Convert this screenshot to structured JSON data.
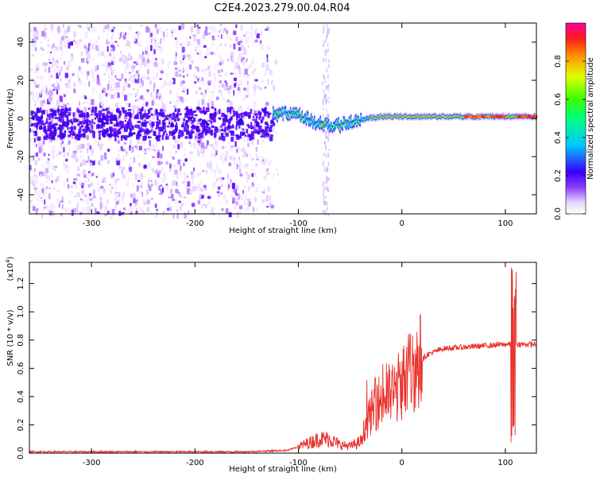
{
  "title": "C2E4.2023.279.00.04.R04",
  "chart_data": [
    {
      "type": "heatmap",
      "xlabel": "Height of straight line (km)",
      "ylabel": "Frequency (Hz)",
      "xlim": [
        -360,
        130
      ],
      "ylim": [
        -50,
        50
      ],
      "x_ticks": [
        -300,
        -200,
        -100,
        0,
        100
      ],
      "y_ticks": [
        -40,
        -20,
        0,
        20,
        40
      ],
      "x_tick_labels": [
        "-300",
        "-200",
        "-100",
        "0",
        "100"
      ],
      "y_tick_labels": [
        "-40",
        "-20",
        "0",
        "20",
        "40"
      ],
      "colorbar": {
        "label": "Normalized spectral amplitude",
        "range": [
          0,
          1
        ],
        "ticks": [
          0.0,
          0.2,
          0.4,
          0.6,
          0.8
        ],
        "tick_labels": [
          "0.0",
          "0.2",
          "0.4",
          "0.6",
          "0.8"
        ]
      },
      "features": {
        "noise_region_x": [
          -360,
          -125
        ],
        "signal_ridge": [
          {
            "x": -125,
            "f": 2
          },
          {
            "x": -110,
            "f": 3
          },
          {
            "x": -95,
            "f": 1
          },
          {
            "x": -85,
            "f": -2
          },
          {
            "x": -75,
            "f": -3
          },
          {
            "x": -65,
            "f": -4
          },
          {
            "x": -50,
            "f": -2
          },
          {
            "x": -35,
            "f": 0
          },
          {
            "x": -20,
            "f": 1
          },
          {
            "x": 0,
            "f": 1
          },
          {
            "x": 30,
            "f": 1
          },
          {
            "x": 60,
            "f": 1
          },
          {
            "x": 90,
            "f": 1
          },
          {
            "x": 130,
            "f": 1
          }
        ],
        "peak_segments_x": [
          [
            60,
            80
          ],
          [
            85,
            100
          ],
          [
            110,
            130
          ]
        ]
      }
    },
    {
      "type": "line",
      "xlabel": "Height of straight line (km)",
      "ylabel": "SNR (10 * v/v)",
      "y_multiplier": "(x10",
      "y_multiplier_exp": "4",
      "y_multiplier_close": ")",
      "xlim": [
        -360,
        130
      ],
      "ylim": [
        0,
        1.35
      ],
      "x_ticks": [
        -300,
        -200,
        -100,
        0,
        100
      ],
      "y_ticks": [
        0.0,
        0.2,
        0.4,
        0.6,
        0.8,
        1.0,
        1.2
      ],
      "x_tick_labels": [
        "-300",
        "-200",
        "-100",
        "0",
        "100"
      ],
      "y_tick_labels": [
        "0.0",
        "0.2",
        "0.4",
        "0.6",
        "0.8",
        "1.0",
        "1.2"
      ],
      "line_color": "#e8302a",
      "envelope": [
        {
          "x": -360,
          "y": 0.01
        },
        {
          "x": -150,
          "y": 0.01
        },
        {
          "x": -110,
          "y": 0.02
        },
        {
          "x": -95,
          "y": 0.06
        },
        {
          "x": -80,
          "y": 0.1
        },
        {
          "x": -70,
          "y": 0.1
        },
        {
          "x": -60,
          "y": 0.06
        },
        {
          "x": -50,
          "y": 0.05
        },
        {
          "x": -40,
          "y": 0.08
        },
        {
          "x": -35,
          "y": 0.2
        },
        {
          "x": -25,
          "y": 0.35
        },
        {
          "x": -15,
          "y": 0.4
        },
        {
          "x": -5,
          "y": 0.45
        },
        {
          "x": 5,
          "y": 0.55
        },
        {
          "x": 15,
          "y": 0.63
        },
        {
          "x": 25,
          "y": 0.7
        },
        {
          "x": 40,
          "y": 0.74
        },
        {
          "x": 60,
          "y": 0.75
        },
        {
          "x": 80,
          "y": 0.76
        },
        {
          "x": 100,
          "y": 0.77
        },
        {
          "x": 130,
          "y": 0.77
        }
      ],
      "spike": {
        "x": 108,
        "y_max": 1.35,
        "y_min": 0.06
      }
    }
  ]
}
